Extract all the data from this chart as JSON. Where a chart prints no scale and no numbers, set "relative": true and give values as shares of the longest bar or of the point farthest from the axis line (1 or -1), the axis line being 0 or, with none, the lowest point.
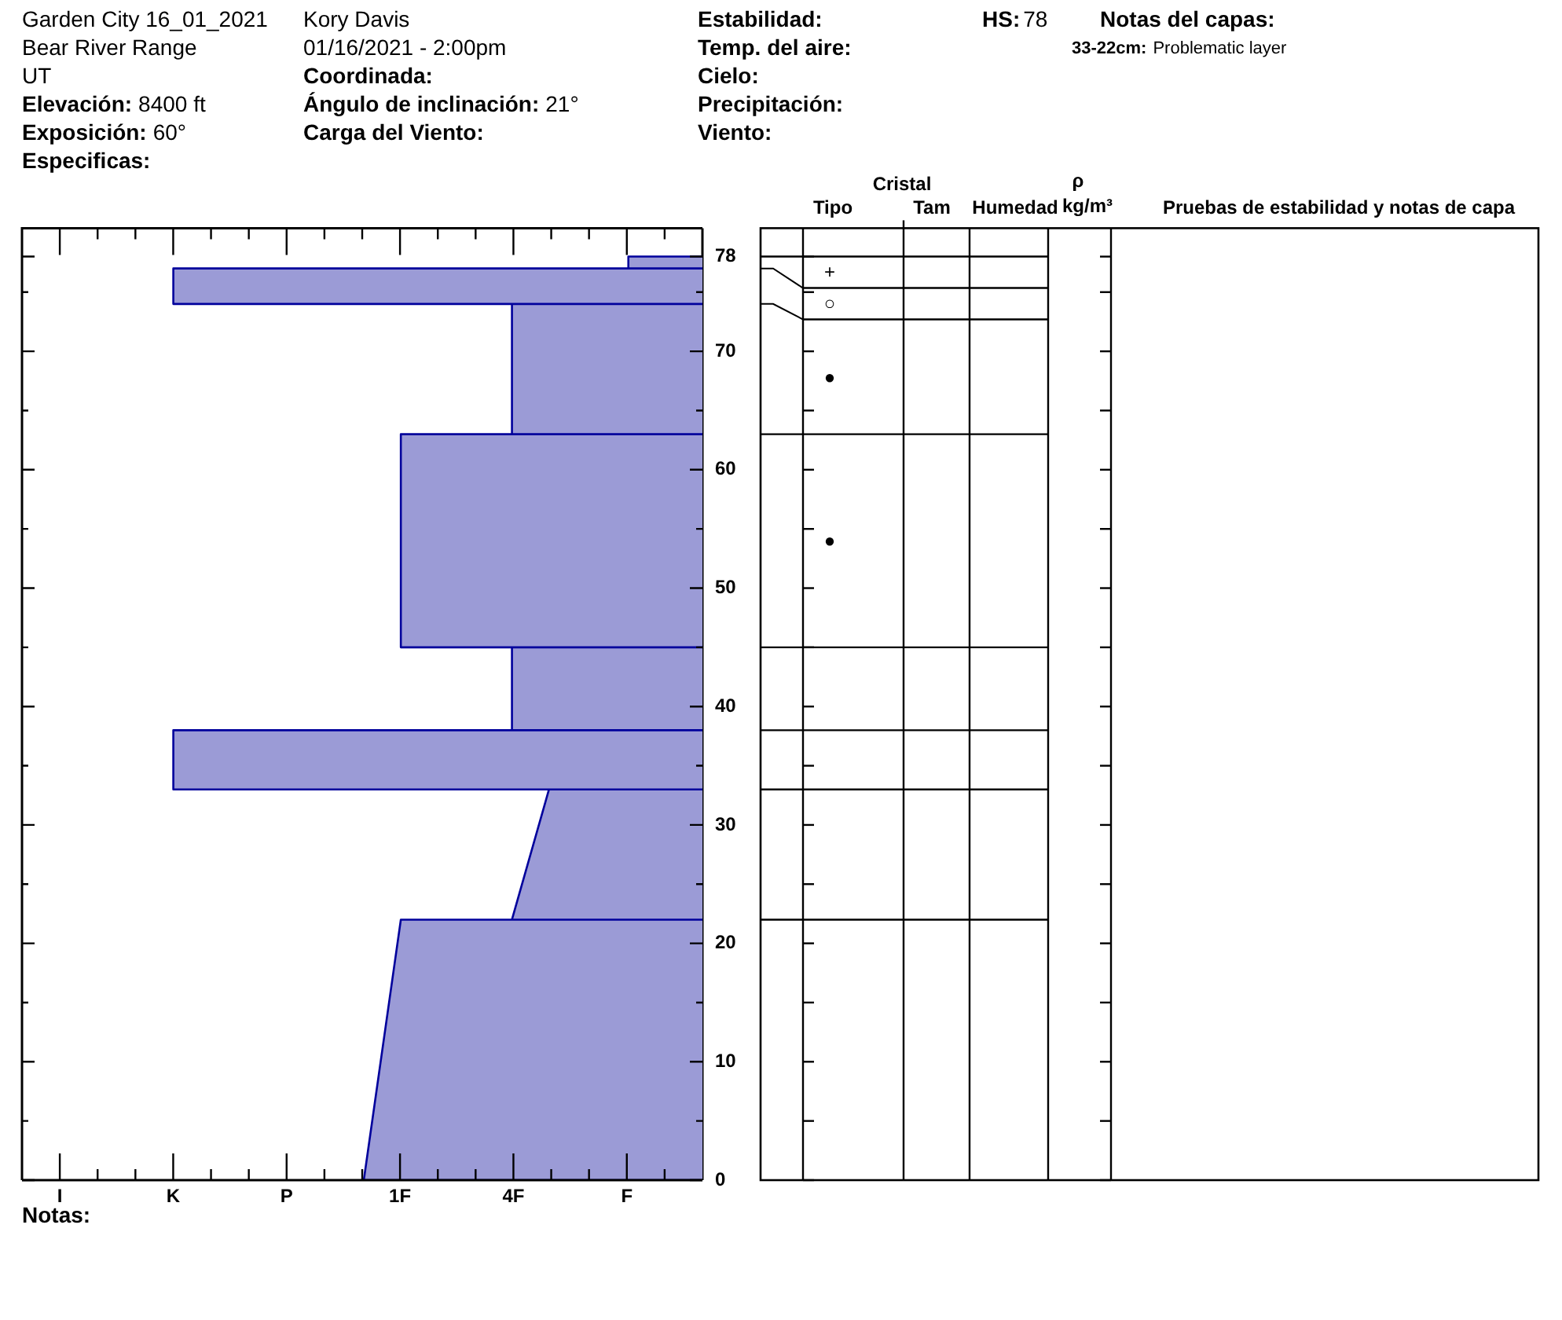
{
  "chart_data": {
    "type": "area",
    "orientation": "horizontal",
    "relative": true,
    "title": "Garden City 16_01_2021",
    "x": [
      0,
      0,
      22,
      22,
      22,
      33,
      33,
      33,
      38,
      38,
      38,
      45,
      45,
      45,
      63,
      63,
      63,
      74,
      74,
      74,
      77,
      77,
      77,
      78,
      78
    ],
    "values": [
      0,
      -0.64,
      -0.57,
      0,
      -0.36,
      -0.29,
      0,
      -1,
      -1,
      0,
      -0.36,
      -0.36,
      0,
      -0.57,
      -0.57,
      0,
      -0.36,
      -0.36,
      0,
      -1,
      -1,
      0,
      -0.14,
      -0.14,
      0
    ],
    "color": "#9b9bd6",
    "ylim": [
      0,
      80.4
    ],
    "yticks": [
      0,
      {
        "value": 5,
        "label": null
      },
      10,
      {
        "value": 15,
        "label": null
      },
      20,
      {
        "value": 25,
        "label": null
      },
      30,
      {
        "value": 35,
        "label": null
      },
      40,
      {
        "value": 45,
        "label": null
      },
      50,
      {
        "value": 55,
        "label": null
      },
      60,
      {
        "value": 65,
        "label": null
      },
      70,
      {
        "value": 75,
        "label": null
      },
      78
    ],
    "annotations": [
      "Bear River Range",
      "UT",
      "Elevación:",
      "8400 ft",
      "Exposición:",
      "60°",
      "Especificas:",
      "Kory Davis",
      "01/16/2021 - 2:00pm",
      "Coordinada:",
      "Ángulo de inclinación:",
      "21°",
      "Carga del Viento:",
      "Estabilidad:",
      "Temp. del aire:",
      "Cielo:",
      "Precipitación:",
      "Viento:",
      "HS:",
      "78",
      "Notas del capas:",
      "33-22cm:",
      "Problematic layer",
      "I",
      "K",
      "P",
      "1F",
      "4F",
      "F",
      "Notas:",
      "Cristal",
      "Tipo",
      "Tam",
      "Humedad",
      "ρ",
      "kg/m³",
      "Pruebas de estabilidad y notas de capa",
      "+",
      "○",
      "●",
      "●"
    ]
  }
}
